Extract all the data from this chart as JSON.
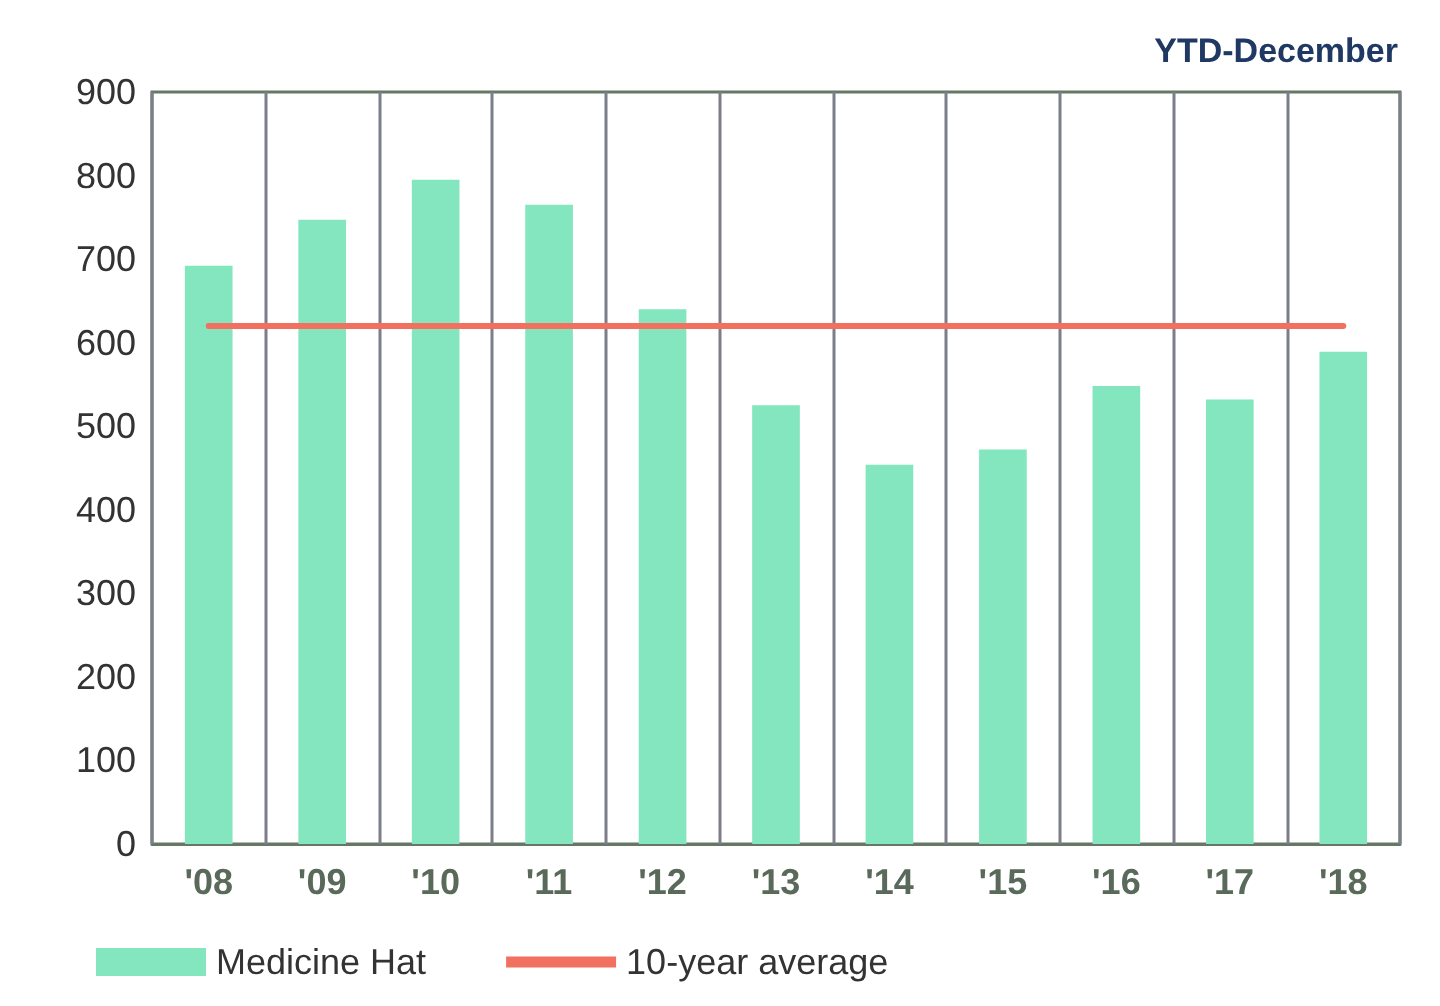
{
  "chart_data": {
    "type": "bar",
    "title": "YTD-December",
    "categories": [
      "'08",
      "'09",
      "'10",
      "'11",
      "'12",
      "'13",
      "'14",
      "'15",
      "'16",
      "'17",
      "'18"
    ],
    "series": [
      {
        "name": "Medicine Hat",
        "color": "#84e6bf",
        "values": [
          692,
          747,
          795,
          765,
          640,
          525,
          454,
          472,
          548,
          532,
          589
        ]
      },
      {
        "name": "10-year average",
        "type": "line",
        "color": "#f2705f",
        "values": [
          620,
          620,
          620,
          620,
          620,
          620,
          620,
          620,
          620,
          620,
          620
        ]
      }
    ],
    "ylim": [
      0,
      900
    ],
    "yticks": [
      0,
      100,
      200,
      300,
      400,
      500,
      600,
      700,
      800,
      900
    ],
    "grid": "x",
    "legend": "bottom"
  }
}
